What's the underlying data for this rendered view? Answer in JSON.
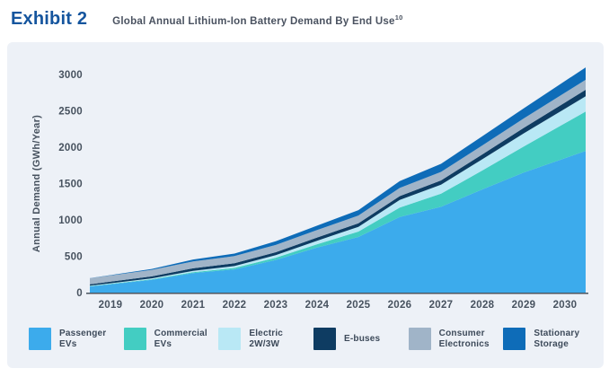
{
  "header": {
    "exhibit_label": "Exhibit 2",
    "title": "Global Annual Lithium-Ion Battery Demand By End Use",
    "title_superscript": "10"
  },
  "colors": {
    "exhibit_blue": "#15559e",
    "title_text": "#4a5260",
    "panel_bg": "#edf1f7",
    "axis_text": "#47525f",
    "axis_line": "#4a5560"
  },
  "chart_data": {
    "type": "area",
    "stacked": true,
    "title": "Global Annual Lithium-Ion Battery Demand By End Use",
    "xlabel": "",
    "ylabel": "Annual Demand (GWh/Year)",
    "x": [
      2019,
      2020,
      2021,
      2022,
      2023,
      2024,
      2025,
      2026,
      2027,
      2028,
      2029,
      2030
    ],
    "series": [
      {
        "name": "Passenger EVs",
        "color": "#3cabec",
        "values": [
          115,
          175,
          268,
          320,
          450,
          620,
          765,
          1040,
          1180,
          1420,
          1650,
          1850
        ]
      },
      {
        "name": "Commercial EVs",
        "color": "#43cdc2",
        "values": [
          6,
          9,
          14,
          20,
          30,
          45,
          75,
          130,
          180,
          260,
          360,
          480
        ]
      },
      {
        "name": "Electric 2W/3W",
        "color": "#b9e8f5",
        "values": [
          8,
          12,
          18,
          26,
          35,
          48,
          65,
          105,
          125,
          155,
          180,
          200
        ]
      },
      {
        "name": "E-buses",
        "color": "#0e3c62",
        "values": [
          22,
          28,
          35,
          38,
          41,
          45,
          48,
          52,
          58,
          66,
          75,
          85
        ]
      },
      {
        "name": "Consumer Electronics",
        "color": "#a0b4c8",
        "values": [
          85,
          90,
          95,
          98,
          100,
          103,
          107,
          112,
          118,
          124,
          130,
          135
        ]
      },
      {
        "name": "Stationary Storage",
        "color": "#0e6cb8",
        "values": [
          5,
          12,
          25,
          35,
          50,
          60,
          75,
          95,
          110,
          125,
          140,
          160
        ]
      }
    ],
    "totals_by_year": [
      241,
      326,
      455,
      537,
      706,
      921,
      1135,
      1534,
      1771,
      2150,
      2535,
      2910
    ],
    "ylim": [
      0,
      3000
    ],
    "yticks": [
      0,
      500,
      1000,
      1500,
      2000,
      2500,
      3000
    ],
    "grid": false,
    "legend_position": "bottom"
  },
  "legend": {
    "items": [
      {
        "line1": "Passenger",
        "line2": "EVs"
      },
      {
        "line1": "Commercial",
        "line2": "EVs"
      },
      {
        "line1": "Electric",
        "line2": "2W/3W"
      },
      {
        "line1": "E-buses",
        "line2": ""
      },
      {
        "line1": "Consumer",
        "line2": "Electronics"
      },
      {
        "line1": "Stationary",
        "line2": "Storage"
      }
    ]
  }
}
